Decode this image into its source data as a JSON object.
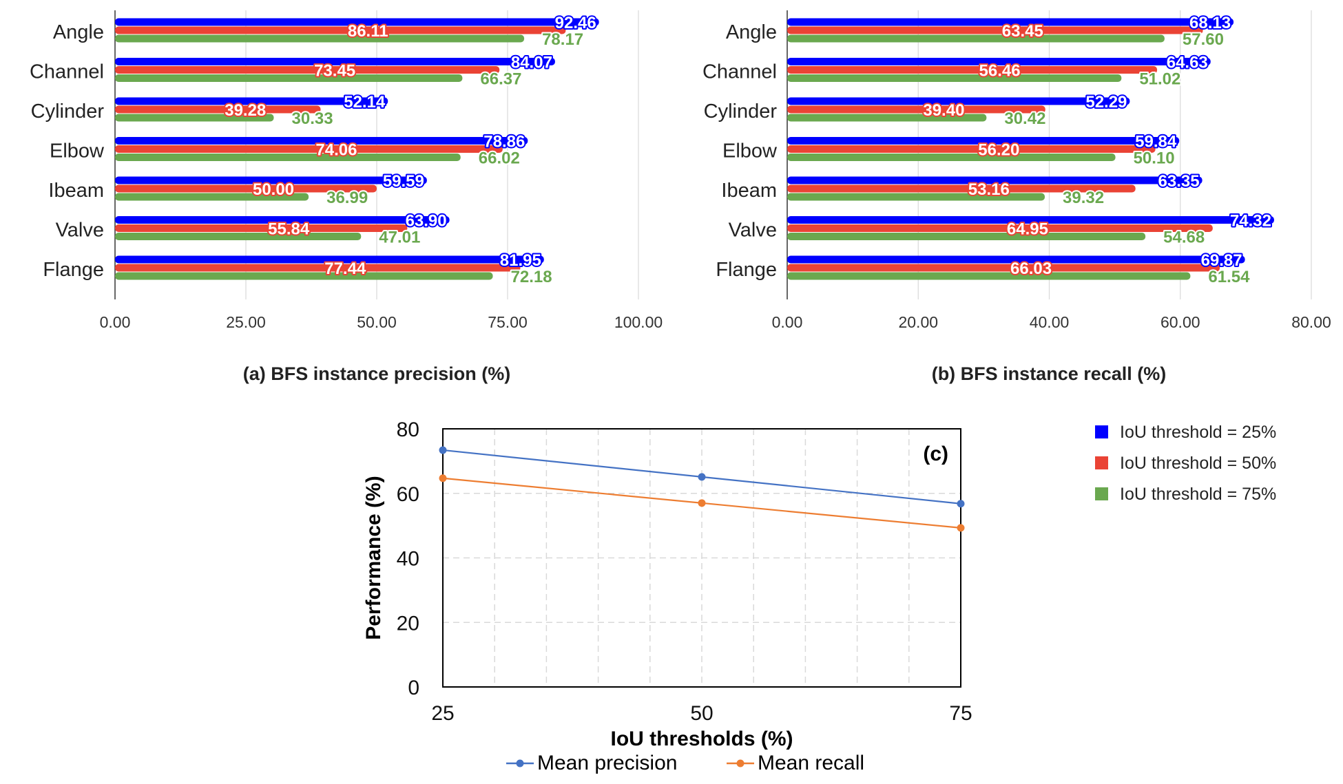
{
  "colors": {
    "blue": "#0000ff",
    "red": "#ea4335",
    "green": "#6aa84f",
    "line_precision": "#4472c4",
    "line_recall": "#ed7d31",
    "grid": "#d9d9d9"
  },
  "legend": {
    "title": "",
    "items": [
      "IoU threshold = 25%",
      "IoU threshold = 50%",
      "IoU threshold = 75%"
    ]
  },
  "chart_data": [
    {
      "type": "bar",
      "orientation": "horizontal",
      "title": "(a) BFS instance precision (%)",
      "categories": [
        "Angle",
        "Channel",
        "Cylinder",
        "Elbow",
        "Ibeam",
        "Valve",
        "Flange"
      ],
      "series": [
        {
          "name": "IoU threshold = 25%",
          "values": [
            92.46,
            84.07,
            52.14,
            78.86,
            59.59,
            63.9,
            81.95
          ],
          "labels": [
            "92.46",
            "84.07",
            "52.14",
            "78.86",
            "59.59",
            "63.90",
            "81.95"
          ]
        },
        {
          "name": "IoU threshold = 50%",
          "values": [
            86.11,
            73.45,
            39.28,
            74.06,
            50.0,
            55.84,
            77.44
          ],
          "labels": [
            "86.11",
            "73.45",
            "39.28",
            "74.06",
            "50.00",
            "55.84",
            "77.44"
          ]
        },
        {
          "name": "IoU threshold = 75%",
          "values": [
            78.17,
            66.37,
            30.33,
            66.02,
            36.99,
            47.01,
            72.18
          ],
          "labels": [
            "78.17",
            "66.37",
            "30.33",
            "66.02",
            "36.99",
            "47.01",
            "72.18"
          ]
        }
      ],
      "xlim": [
        0,
        100
      ],
      "xticks": [
        0,
        25,
        50,
        75,
        100
      ],
      "xtick_labels": [
        "0.00",
        "25.00",
        "50.00",
        "75.00",
        "100.00"
      ],
      "grid": true
    },
    {
      "type": "bar",
      "orientation": "horizontal",
      "title": "(b) BFS instance recall (%)",
      "categories": [
        "Angle",
        "Channel",
        "Cylinder",
        "Elbow",
        "Ibeam",
        "Valve",
        "Flange"
      ],
      "series": [
        {
          "name": "IoU threshold = 25%",
          "values": [
            68.13,
            64.63,
            52.29,
            59.84,
            63.35,
            74.32,
            69.87
          ],
          "labels": [
            "68.13",
            "64.63",
            "52.29",
            "59.84",
            "63.35",
            "74.32",
            "69.87"
          ]
        },
        {
          "name": "IoU threshold = 50%",
          "values": [
            63.45,
            56.46,
            39.4,
            56.2,
            53.16,
            64.95,
            66.03
          ],
          "labels": [
            "63.45",
            "56.46",
            "39.40",
            "56.20",
            "53.16",
            "64.95",
            "66.03"
          ]
        },
        {
          "name": "IoU threshold = 75%",
          "values": [
            57.6,
            51.02,
            30.42,
            50.1,
            39.32,
            54.68,
            61.54
          ],
          "labels": [
            "57.60",
            "51.02",
            "30.42",
            "50.10",
            "39.32",
            "54.68",
            "61.54"
          ]
        }
      ],
      "xlim": [
        0,
        80
      ],
      "xticks": [
        0,
        20,
        40,
        60,
        80
      ],
      "xtick_labels": [
        "0.00",
        "20.00",
        "40.00",
        "60.00",
        "80.00"
      ],
      "grid": true
    },
    {
      "type": "line",
      "panel_label": "(c)",
      "x": [
        25,
        50,
        75
      ],
      "xtick_labels": [
        "25",
        "50",
        "75"
      ],
      "series": [
        {
          "name": "Mean precision",
          "values": [
            73.4,
            65.1,
            56.8
          ]
        },
        {
          "name": "Mean recall",
          "values": [
            64.7,
            57.0,
            49.3
          ]
        }
      ],
      "xlabel": "IoU thresholds (%)",
      "ylabel": "Performance (%)",
      "xlim": [
        25,
        75
      ],
      "ylim": [
        0,
        80
      ],
      "yticks": [
        0,
        20,
        40,
        60,
        80
      ],
      "ytick_labels": [
        "0",
        "20",
        "40",
        "60",
        "80"
      ],
      "grid": true
    }
  ]
}
